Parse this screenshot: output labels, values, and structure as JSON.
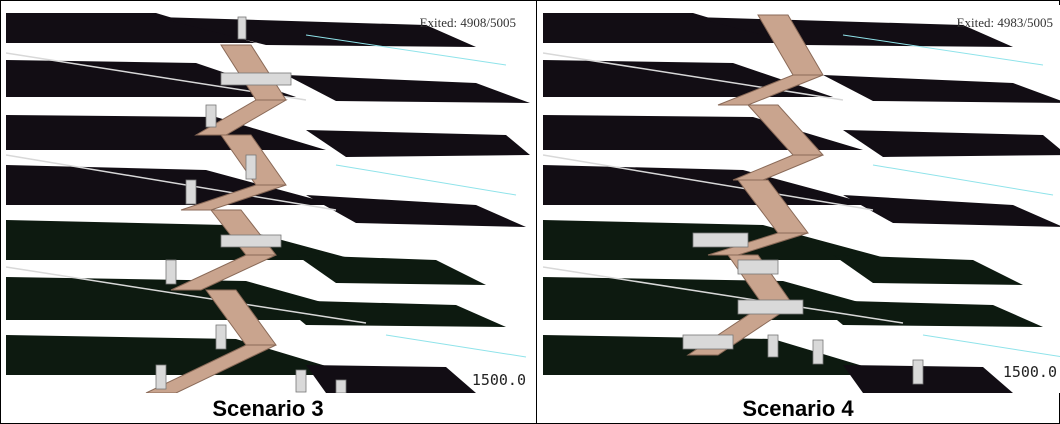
{
  "panels": [
    {
      "exited": "Exited: 4908/5005",
      "time": "1500.0",
      "caption": "Scenario 3"
    },
    {
      "exited": "Exited: 4983/5005",
      "time": "1500.0",
      "caption": "Scenario 4"
    }
  ]
}
